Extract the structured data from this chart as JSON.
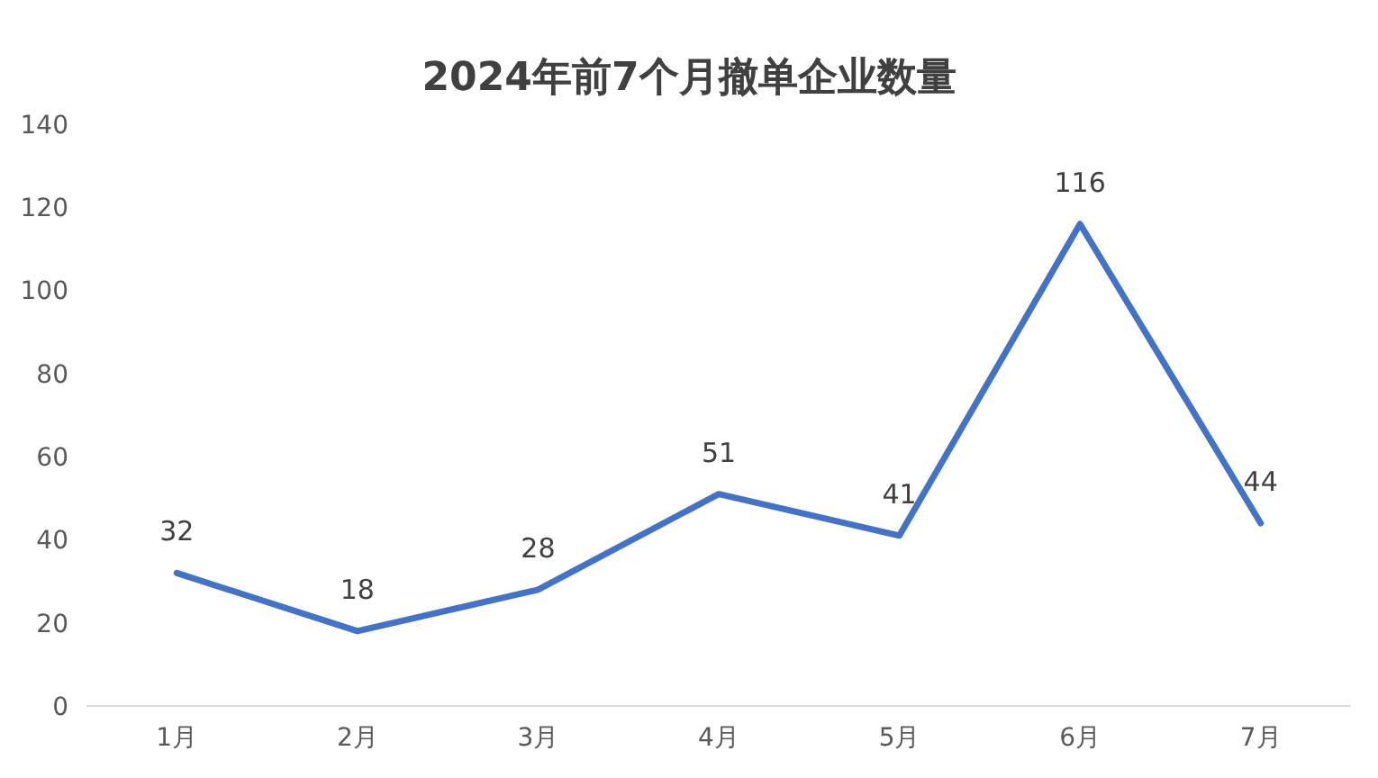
{
  "chart_data": {
    "type": "line",
    "title": "2024年前7个月撤单企业数量",
    "categories": [
      "1月",
      "2月",
      "3月",
      "4月",
      "5月",
      "6月",
      "7月"
    ],
    "series": [
      {
        "color": "#4472c4",
        "values": [
          32,
          18,
          28,
          51,
          41,
          116,
          44
        ]
      }
    ],
    "ylim": [
      0,
      140
    ],
    "yticks": [
      0,
      20,
      40,
      60,
      80,
      100,
      120,
      140
    ],
    "data_labels": true,
    "grid": false,
    "marker": "none",
    "line_style": "solid"
  }
}
